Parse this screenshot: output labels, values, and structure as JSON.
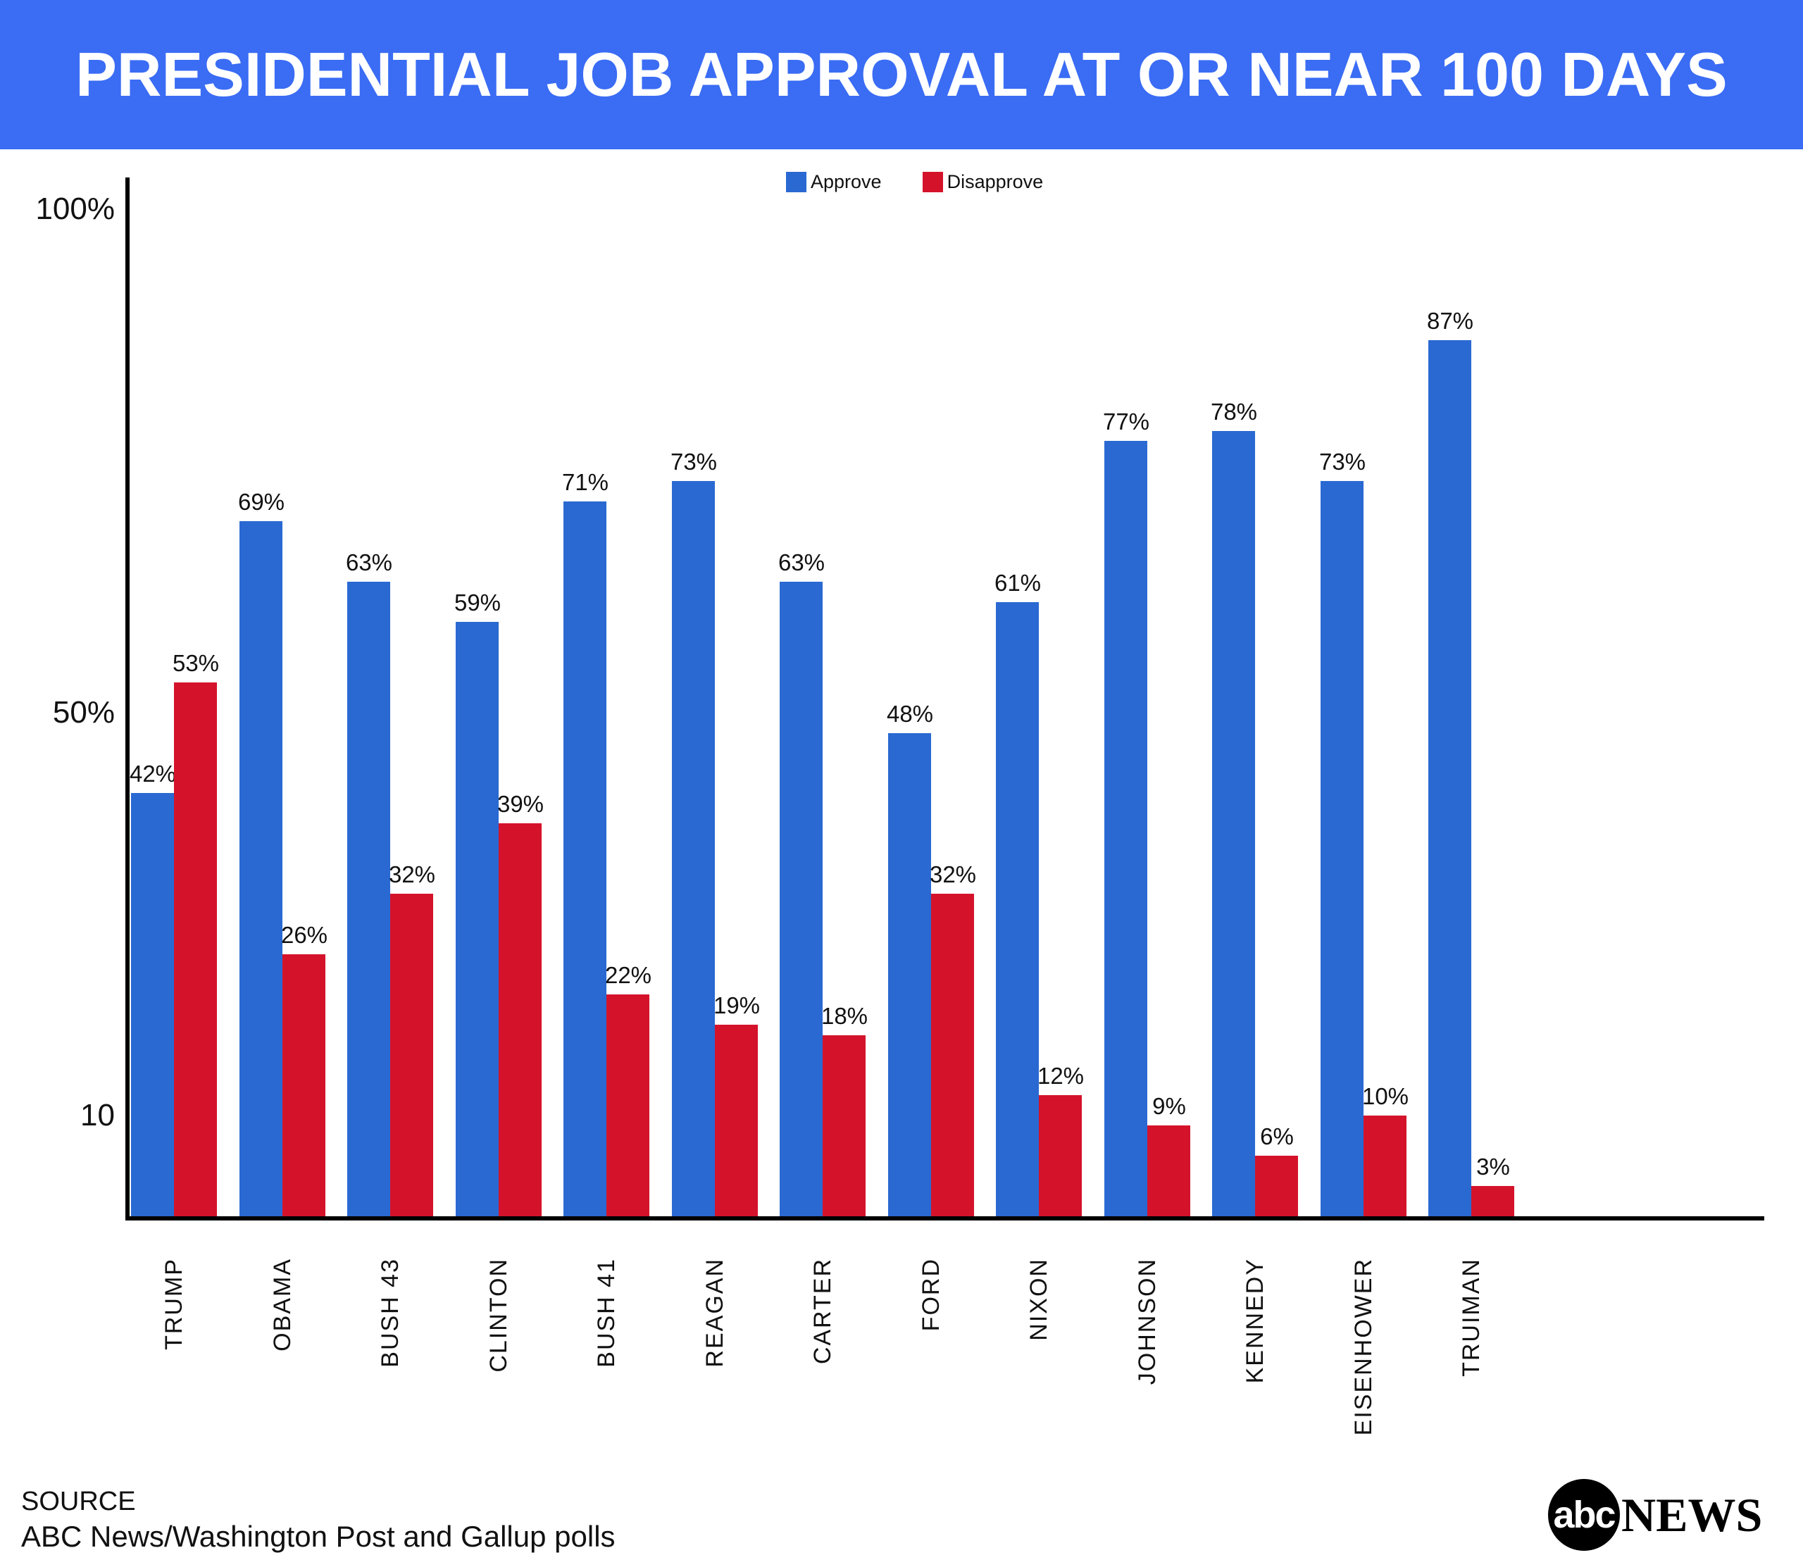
{
  "header": {
    "title": "PRESIDENTIAL JOB APPROVAL AT OR NEAR 100 DAYS"
  },
  "chart_data": {
    "type": "bar",
    "title": "PRESIDENTIAL JOB APPROVAL AT OR NEAR 100 DAYS",
    "categories": [
      "TRUMP",
      "OBAMA",
      "BUSH 43",
      "CLINTON",
      "BUSH 41",
      "REAGAN",
      "CARTER",
      "FORD",
      "NIXON",
      "JOHNSON",
      "KENNEDY",
      "EISENHOWER",
      "TRUIMAN"
    ],
    "series": [
      {
        "name": "Approve",
        "color": "#2A69D2",
        "values": [
          42,
          69,
          63,
          59,
          71,
          73,
          63,
          48,
          61,
          77,
          78,
          73,
          87
        ]
      },
      {
        "name": "Disapprove",
        "color": "#D4132B",
        "values": [
          53,
          26,
          32,
          39,
          22,
          19,
          18,
          32,
          12,
          9,
          6,
          10,
          3
        ]
      }
    ],
    "ylim": [
      0,
      100
    ],
    "yticks": [
      {
        "label": "100%",
        "value": 100
      },
      {
        "label": "50%",
        "value": 50
      },
      {
        "label": "10",
        "value": 10
      }
    ],
    "legend_position": "top-center",
    "grid": false,
    "value_label_suffix": "%"
  },
  "colors": {
    "header_bg": "#3A6CF4",
    "approve": "#2A69D2",
    "disapprove": "#D4132B",
    "axis": "#000000"
  },
  "source": {
    "label": "SOURCE",
    "text": "ABC News/Washington Post  and Gallup polls"
  },
  "logo": {
    "circle_text": "abc",
    "wordmark": "NEWS"
  }
}
